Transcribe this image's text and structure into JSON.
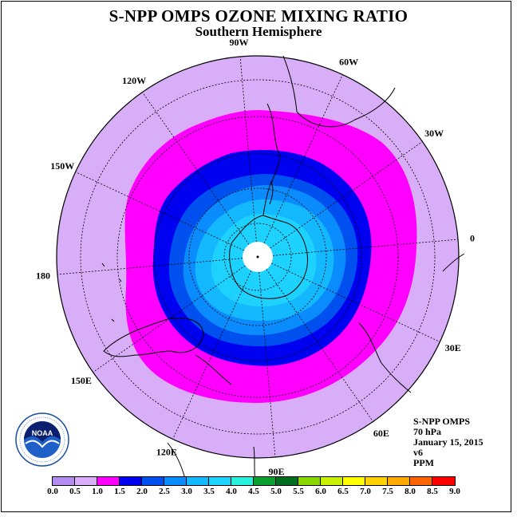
{
  "title": "S-NPP OMPS OZONE MIXING RATIO",
  "subtitle": "Southern Hemisphere",
  "info": {
    "instrument": "S-NPP OMPS",
    "level": "70 hPa",
    "date": "January 15, 2015",
    "version": "v6",
    "units": "PPM"
  },
  "longitude_labels": [
    "90W",
    "60W",
    "30W",
    "0",
    "30E",
    "60E",
    "90E",
    "120E",
    "150E",
    "180",
    "150W",
    "120W"
  ],
  "logo_text": "NOAA",
  "colorbar": {
    "ticks": [
      "0.0",
      "0.5",
      "1.0",
      "1.5",
      "2.0",
      "2.5",
      "3.0",
      "3.5",
      "4.0",
      "4.5",
      "5.0",
      "5.5",
      "6.0",
      "6.5",
      "7.0",
      "7.5",
      "8.0",
      "8.5",
      "9.0"
    ],
    "colors": [
      "#b48cf0",
      "#d9aef8",
      "#ff00ff",
      "#0000f0",
      "#0050f0",
      "#0a8cff",
      "#14b8ff",
      "#1ed2ff",
      "#28f0dc",
      "#0aa02e",
      "#006e1e",
      "#88d800",
      "#c8f000",
      "#ffff00",
      "#ffd200",
      "#ffaa00",
      "#ff6400",
      "#ff0000",
      "#8c5a3c"
    ]
  },
  "chart_data": {
    "type": "map",
    "projection": "south polar stereographic",
    "variable": "OZONE MIXING RATIO",
    "units": "PPM",
    "level": "70 hPa",
    "date": "January 15, 2015",
    "ozone_bands_ppm": [
      {
        "range": [
          0.5,
          1.0
        ],
        "color": "#d9aef8",
        "region": "outer mid-latitudes"
      },
      {
        "range": [
          1.0,
          1.5
        ],
        "color": "#ff00ff",
        "region": "southern mid-latitude ring"
      },
      {
        "range": [
          1.5,
          2.0
        ],
        "color": "#0000f0",
        "region": "polar vortex edge ring"
      },
      {
        "range": [
          2.0,
          2.5
        ],
        "color": "#0050f0",
        "region": "inner ring"
      },
      {
        "range": [
          2.5,
          3.0
        ],
        "color": "#0a8cff",
        "region": "inner ring"
      },
      {
        "range": [
          3.0,
          3.5
        ],
        "color": "#14b8ff",
        "region": "polar cap"
      },
      {
        "range": [
          3.5,
          4.0
        ],
        "color": "#1ed2ff",
        "region": "polar cap core"
      }
    ],
    "no_data": "white circle at South Pole"
  }
}
